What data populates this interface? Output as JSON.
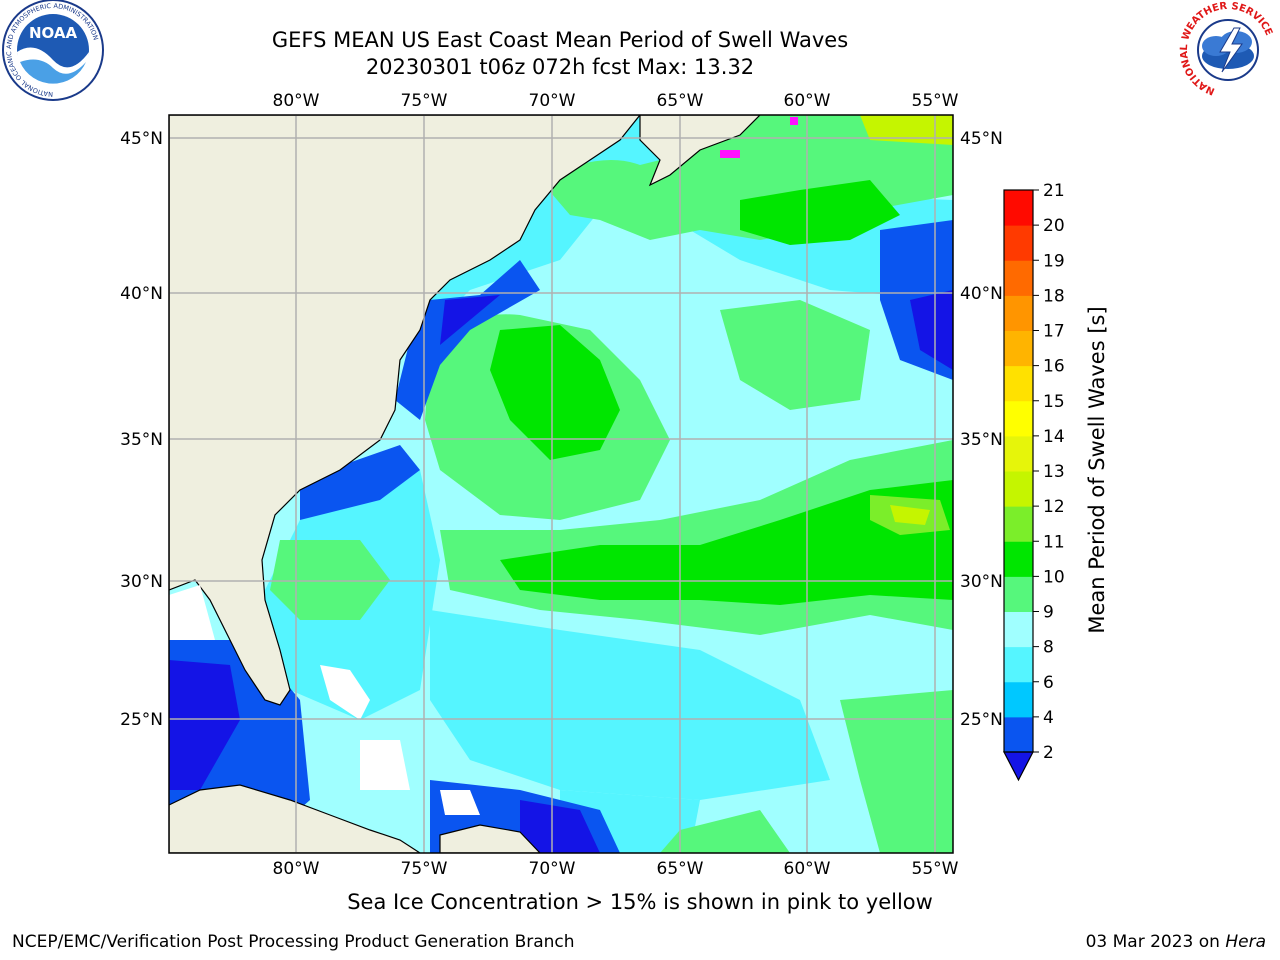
{
  "title_line1": "GEFS MEAN US East Coast Mean Period of Swell Waves",
  "title_line2": "20230301 t06z 072h fcst   Max: 13.32",
  "map": {
    "lon_ticks": [
      "80°W",
      "75°W",
      "70°W",
      "65°W",
      "60°W",
      "55°W"
    ],
    "lat_ticks": [
      "45°N",
      "40°N",
      "35°N",
      "30°N",
      "25°N"
    ],
    "colors": {
      "land": "#efefdf",
      "coastline": "#000000",
      "grid": "#b0b0b0"
    }
  },
  "colorbar": {
    "label": "Mean Period of Swell Waves [s]",
    "levels": [
      "2",
      "4",
      "6",
      "8",
      "9",
      "10",
      "11",
      "12",
      "13",
      "14",
      "15",
      "16",
      "17",
      "18",
      "19",
      "20",
      "21"
    ],
    "colors": [
      "#0a55f0",
      "#00c8ff",
      "#55f5ff",
      "#a0ffff",
      "#56f77c",
      "#00e600",
      "#7bee2a",
      "#c5f500",
      "#e6f50a",
      "#ffff00",
      "#ffe100",
      "#ffb400",
      "#ff9500",
      "#ff6a00",
      "#ff3a00",
      "#ff0a00"
    ],
    "extend_color": "#1414e6"
  },
  "caption": "Sea Ice Concentration > 15% is shown in pink to yellow",
  "footer_left": "NCEP/EMC/Verification Post Processing Product Generation Branch",
  "footer_date": "03 Mar 2023 on",
  "footer_host": "Hera",
  "logos": {
    "noaa_text": "NOAA",
    "noaa_ring": "NATIONAL OCEANIC AND ATMOSPHERIC ADMINISTRATION",
    "nws_ring": "NATIONAL WEATHER SERVICE"
  }
}
